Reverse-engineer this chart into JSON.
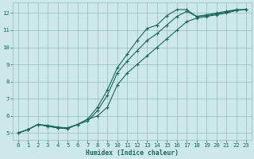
{
  "xlabel": "Humidex (Indice chaleur)",
  "bg_color": "#cce8e8",
  "grid_color": "#99bbbb",
  "line_color": "#1a6655",
  "xlim": [
    -0.5,
    23.5
  ],
  "ylim": [
    4.6,
    12.6
  ],
  "xticks": [
    0,
    1,
    2,
    3,
    4,
    5,
    6,
    7,
    8,
    9,
    10,
    11,
    12,
    13,
    14,
    15,
    16,
    17,
    18,
    19,
    20,
    21,
    22,
    23
  ],
  "yticks": [
    5,
    6,
    7,
    8,
    9,
    10,
    11,
    12
  ],
  "line1_x": [
    0,
    1,
    2,
    3,
    4,
    5,
    6,
    7,
    8,
    9,
    10,
    11,
    12,
    13,
    14,
    15,
    16,
    17,
    18,
    19,
    20,
    21,
    22,
    23
  ],
  "line1_y": [
    5.0,
    5.2,
    5.5,
    5.4,
    5.3,
    5.3,
    5.5,
    5.8,
    6.0,
    6.5,
    7.8,
    8.5,
    9.0,
    9.5,
    10.0,
    10.5,
    11.0,
    11.5,
    11.7,
    11.8,
    11.9,
    12.0,
    12.15,
    12.2
  ],
  "line2_x": [
    0,
    1,
    2,
    3,
    4,
    5,
    6,
    7,
    8,
    9,
    10,
    11,
    12,
    13,
    14,
    15,
    16,
    17,
    18,
    19,
    20,
    21,
    22,
    23
  ],
  "line2_y": [
    5.0,
    5.2,
    5.5,
    5.4,
    5.3,
    5.25,
    5.5,
    5.7,
    6.3,
    7.2,
    8.5,
    9.2,
    9.8,
    10.4,
    10.8,
    11.3,
    11.8,
    12.1,
    11.8,
    11.85,
    11.95,
    12.05,
    12.18,
    12.2
  ],
  "line3_x": [
    0,
    1,
    2,
    3,
    4,
    5,
    6,
    7,
    8,
    9,
    10,
    11,
    12,
    13,
    14,
    15,
    16,
    17,
    18,
    19,
    20,
    21,
    22,
    23
  ],
  "line3_y": [
    5.0,
    5.2,
    5.5,
    5.45,
    5.35,
    5.3,
    5.5,
    5.8,
    6.5,
    7.5,
    8.8,
    9.6,
    10.4,
    11.1,
    11.3,
    11.85,
    12.2,
    12.2,
    11.8,
    11.9,
    12.0,
    12.1,
    12.2,
    12.2
  ]
}
